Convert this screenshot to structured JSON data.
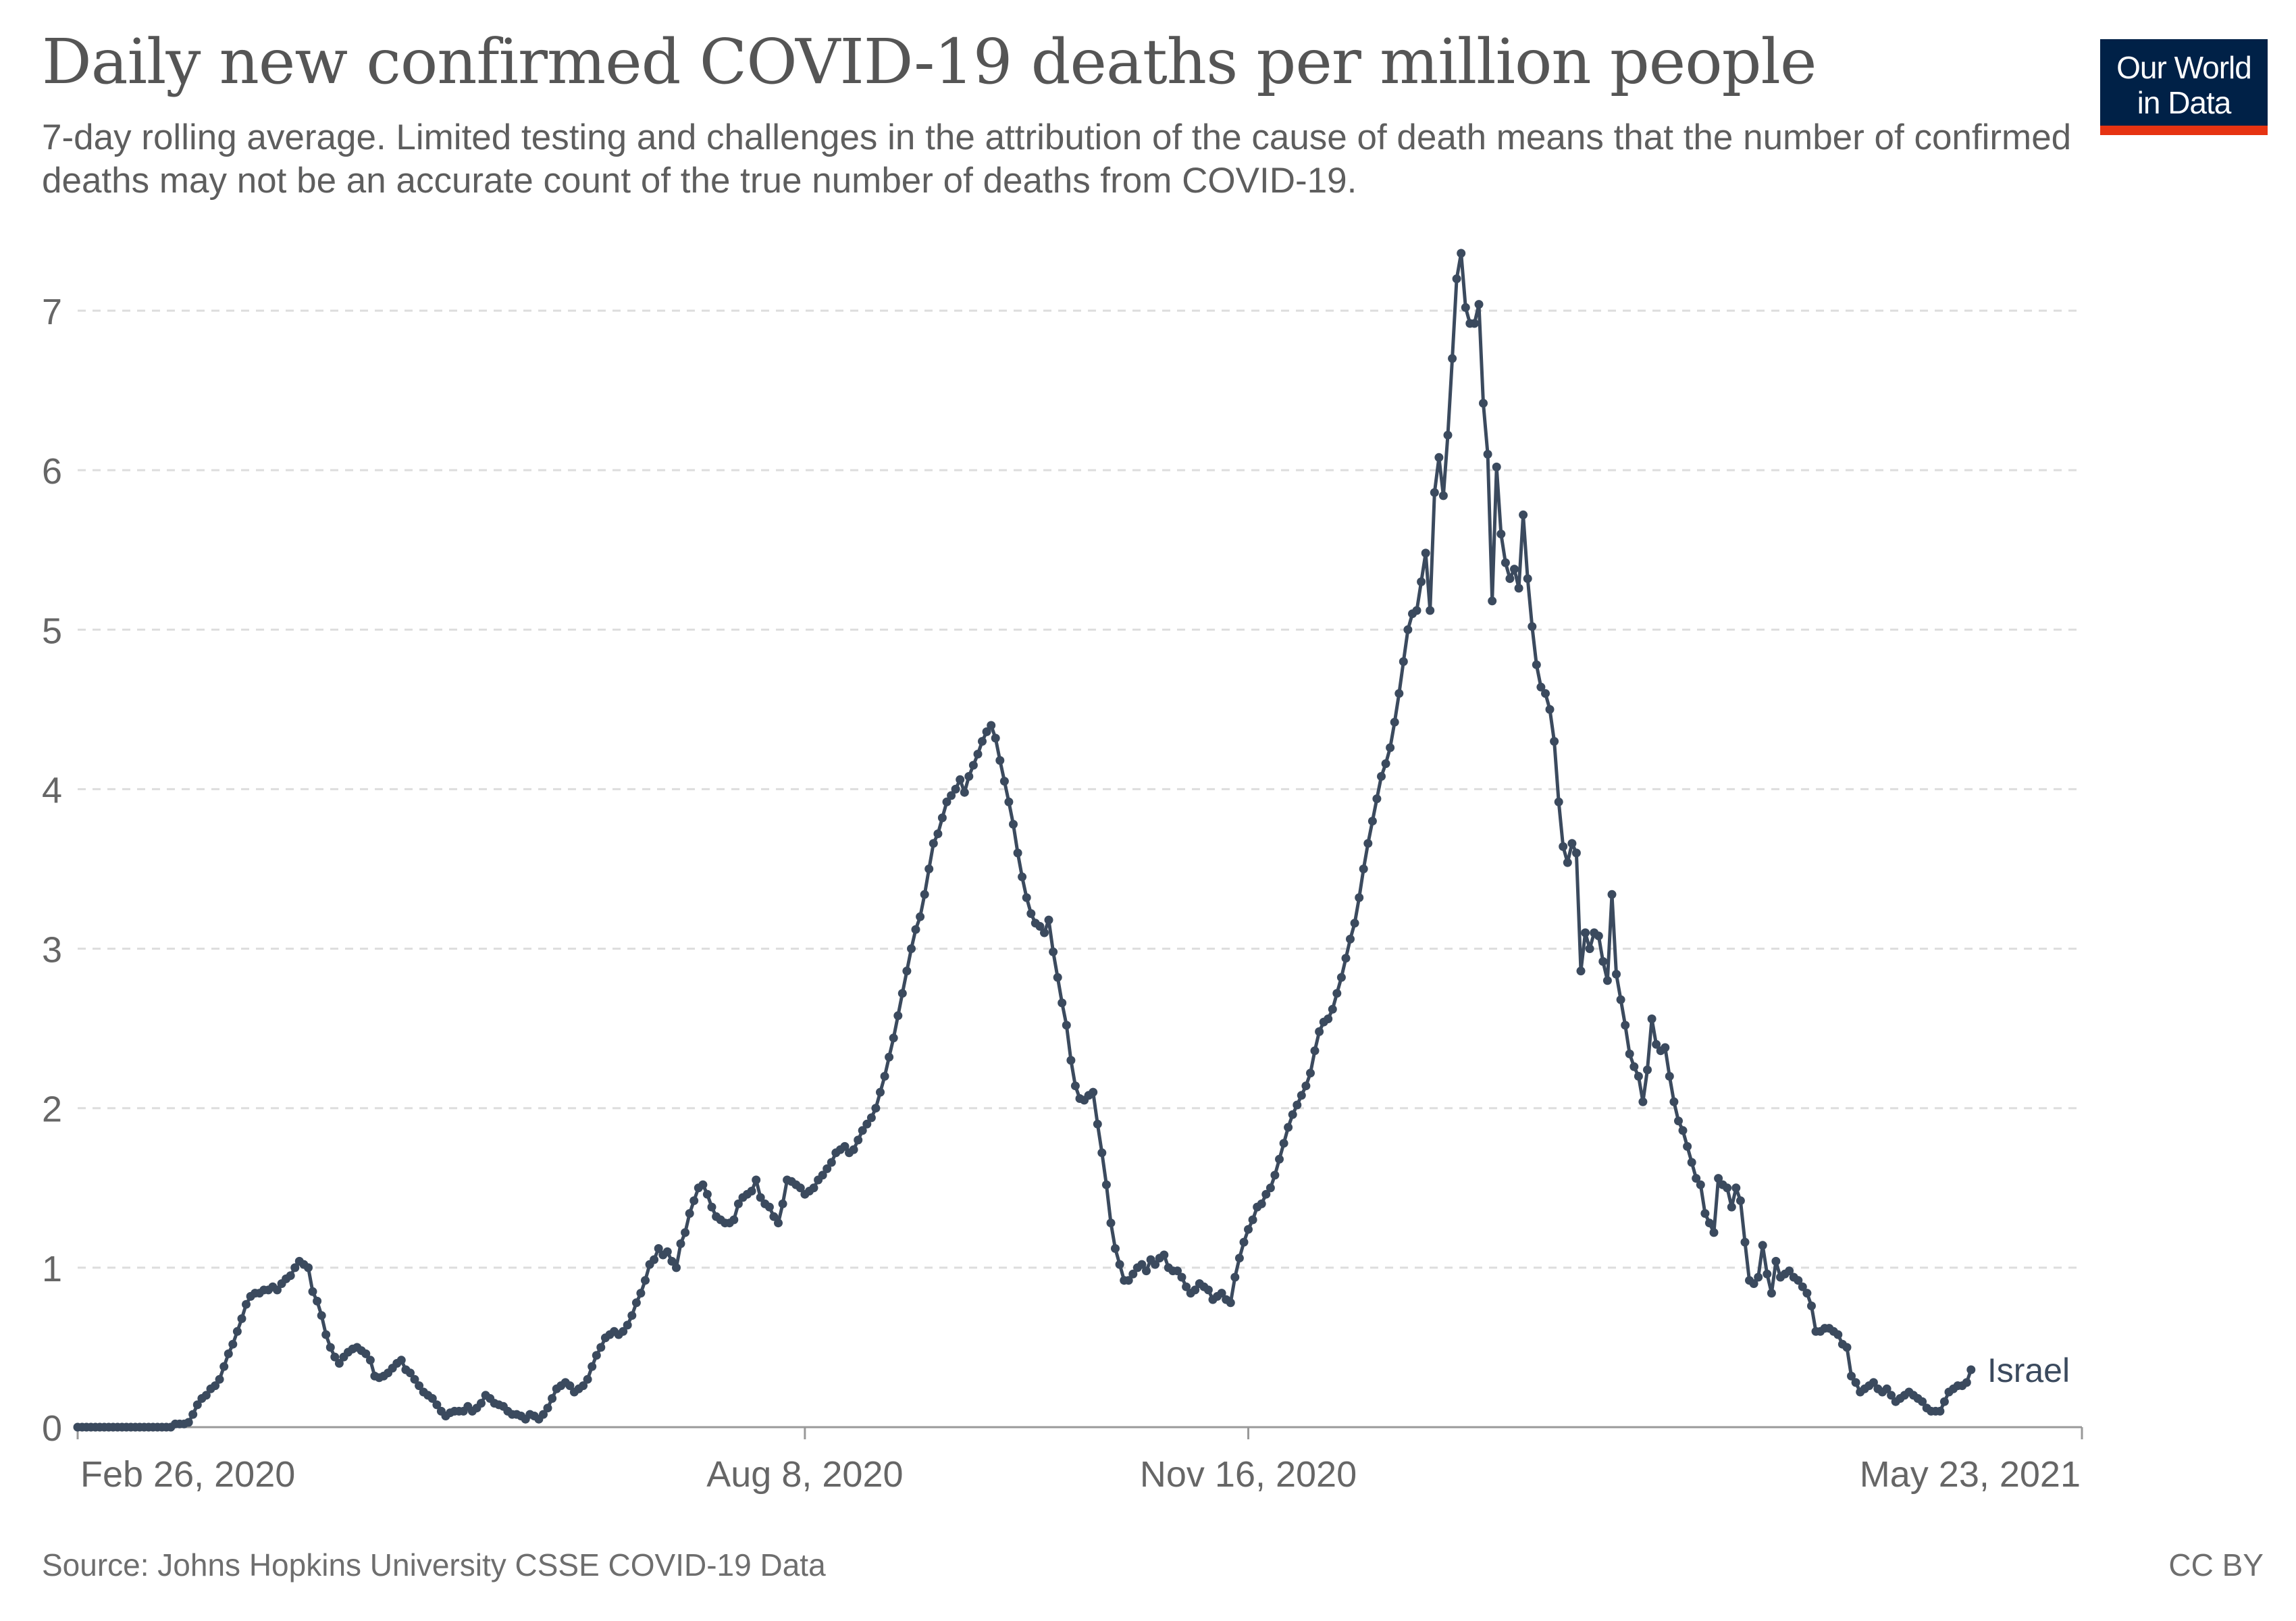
{
  "header": {
    "title": "Daily new confirmed COVID-19 deaths per million people",
    "subtitle": "7-day rolling average. Limited testing and challenges in the attribution of the cause of death means that the number of confirmed deaths may not be an accurate count of the true number of deaths from COVID-19."
  },
  "logo": {
    "line1": "Our World",
    "line2": "in Data",
    "bg_color": "#002147",
    "accent_color": "#e63312"
  },
  "footer": {
    "source": "Source: Johns Hopkins University CSSE COVID-19 Data",
    "license": "CC BY"
  },
  "colors": {
    "series": "#3b4a5e",
    "grid": "#dddddd",
    "axis": "#999999",
    "text": "#666666"
  },
  "chart_data": {
    "type": "line",
    "title": "Daily new confirmed COVID-19 deaths per million people",
    "xlabel": "",
    "ylabel": "",
    "ylim": [
      0,
      7.45
    ],
    "yticks": [
      0,
      1,
      2,
      3,
      4,
      5,
      6,
      7
    ],
    "ytick_labels": [
      "0",
      "1",
      "2",
      "3",
      "4",
      "5",
      "6",
      "7"
    ],
    "x_start_label": "Feb 26, 2020",
    "x_total_days": 452,
    "xticks": [
      {
        "day": 0,
        "label": "Feb 26, 2020"
      },
      {
        "day": 164,
        "label": "Aug 8, 2020"
      },
      {
        "day": 264,
        "label": "Nov 16, 2020"
      },
      {
        "day": 452,
        "label": "May 23, 2021"
      }
    ],
    "grid": true,
    "series": [
      {
        "name": "Israel",
        "start_day": 0,
        "step_days": 1,
        "values": [
          0,
          0,
          0,
          0,
          0,
          0,
          0,
          0,
          0,
          0,
          0,
          0,
          0,
          0,
          0,
          0,
          0,
          0,
          0,
          0,
          0,
          0,
          0.02,
          0.02,
          0.02,
          0.03,
          0.08,
          0.14,
          0.18,
          0.2,
          0.24,
          0.26,
          0.3,
          0.38,
          0.46,
          0.52,
          0.6,
          0.68,
          0.77,
          0.82,
          0.84,
          0.84,
          0.86,
          0.86,
          0.88,
          0.86,
          0.9,
          0.93,
          0.95,
          1.0,
          1.04,
          1.02,
          1.0,
          0.85,
          0.79,
          0.7,
          0.58,
          0.5,
          0.44,
          0.4,
          0.44,
          0.47,
          0.49,
          0.5,
          0.48,
          0.46,
          0.42,
          0.32,
          0.31,
          0.32,
          0.34,
          0.37,
          0.4,
          0.42,
          0.36,
          0.34,
          0.3,
          0.26,
          0.22,
          0.2,
          0.18,
          0.14,
          0.1,
          0.07,
          0.09,
          0.1,
          0.1,
          0.1,
          0.13,
          0.1,
          0.12,
          0.15,
          0.2,
          0.18,
          0.15,
          0.14,
          0.13,
          0.1,
          0.08,
          0.08,
          0.07,
          0.05,
          0.08,
          0.07,
          0.05,
          0.08,
          0.12,
          0.18,
          0.24,
          0.26,
          0.28,
          0.26,
          0.22,
          0.24,
          0.26,
          0.3,
          0.38,
          0.45,
          0.5,
          0.56,
          0.58,
          0.6,
          0.58,
          0.6,
          0.64,
          0.7,
          0.78,
          0.84,
          0.92,
          1.02,
          1.05,
          1.12,
          1.08,
          1.1,
          1.04,
          1.0,
          1.15,
          1.22,
          1.34,
          1.42,
          1.5,
          1.52,
          1.46,
          1.38,
          1.32,
          1.3,
          1.28,
          1.28,
          1.3,
          1.4,
          1.44,
          1.46,
          1.48,
          1.55,
          1.44,
          1.4,
          1.38,
          1.32,
          1.28,
          1.4,
          1.55,
          1.54,
          1.52,
          1.5,
          1.46,
          1.48,
          1.5,
          1.55,
          1.58,
          1.62,
          1.66,
          1.72,
          1.74,
          1.76,
          1.72,
          1.74,
          1.8,
          1.86,
          1.9,
          1.94,
          2.0,
          2.1,
          2.2,
          2.32,
          2.44,
          2.58,
          2.72,
          2.86,
          3.0,
          3.12,
          3.2,
          3.34,
          3.5,
          3.66,
          3.72,
          3.82,
          3.92,
          3.96,
          4.0,
          4.06,
          3.98,
          4.08,
          4.15,
          4.22,
          4.3,
          4.36,
          4.4,
          4.32,
          4.18,
          4.05,
          3.92,
          3.78,
          3.6,
          3.45,
          3.32,
          3.22,
          3.16,
          3.14,
          3.1,
          3.18,
          2.98,
          2.82,
          2.66,
          2.52,
          2.3,
          2.14,
          2.06,
          2.05,
          2.08,
          2.1,
          1.9,
          1.72,
          1.52,
          1.28,
          1.12,
          1.02,
          0.92,
          0.92,
          0.96,
          1.0,
          1.02,
          0.98,
          1.05,
          1.02,
          1.06,
          1.08,
          1.0,
          0.98,
          0.98,
          0.94,
          0.88,
          0.84,
          0.86,
          0.9,
          0.88,
          0.86,
          0.8,
          0.82,
          0.84,
          0.8,
          0.78,
          0.94,
          1.06,
          1.16,
          1.24,
          1.3,
          1.38,
          1.4,
          1.46,
          1.5,
          1.58,
          1.68,
          1.78,
          1.88,
          1.96,
          2.02,
          2.08,
          2.14,
          2.22,
          2.36,
          2.48,
          2.54,
          2.56,
          2.62,
          2.72,
          2.82,
          2.94,
          3.06,
          3.16,
          3.32,
          3.5,
          3.66,
          3.8,
          3.94,
          4.08,
          4.16,
          4.26,
          4.42,
          4.6,
          4.8,
          5.0,
          5.1,
          5.12,
          5.3,
          5.48,
          5.12,
          5.86,
          6.08,
          5.84,
          6.22,
          6.7,
          7.2,
          7.36,
          7.02,
          6.92,
          6.92,
          7.04,
          6.42,
          6.1,
          5.18,
          6.02,
          5.6,
          5.42,
          5.32,
          5.38,
          5.26,
          5.72,
          5.32,
          5.02,
          4.78,
          4.64,
          4.6,
          4.5,
          4.3,
          3.92,
          3.64,
          3.54,
          3.66,
          3.6,
          2.86,
          3.1,
          3.0,
          3.1,
          3.08,
          2.92,
          2.8,
          3.34,
          2.84,
          2.68,
          2.52,
          2.34,
          2.26,
          2.2,
          2.04,
          2.24,
          2.56,
          2.4,
          2.36,
          2.38,
          2.2,
          2.04,
          1.92,
          1.86,
          1.76,
          1.66,
          1.56,
          1.52,
          1.34,
          1.28,
          1.22,
          1.56,
          1.52,
          1.5,
          1.38,
          1.5,
          1.42,
          1.16,
          0.92,
          0.9,
          0.94,
          1.14,
          0.96,
          0.84,
          1.04,
          0.94,
          0.96,
          0.98,
          0.94,
          0.92,
          0.88,
          0.84,
          0.76,
          0.6,
          0.6,
          0.62,
          0.62,
          0.6,
          0.58,
          0.52,
          0.5,
          0.32,
          0.28,
          0.22,
          0.24,
          0.26,
          0.28,
          0.24,
          0.22,
          0.24,
          0.2,
          0.16,
          0.18,
          0.2,
          0.22,
          0.2,
          0.18,
          0.16,
          0.12,
          0.1,
          0.1,
          0.1,
          0.16,
          0.22,
          0.24,
          0.26,
          0.26,
          0.28,
          0.36
        ]
      }
    ]
  }
}
